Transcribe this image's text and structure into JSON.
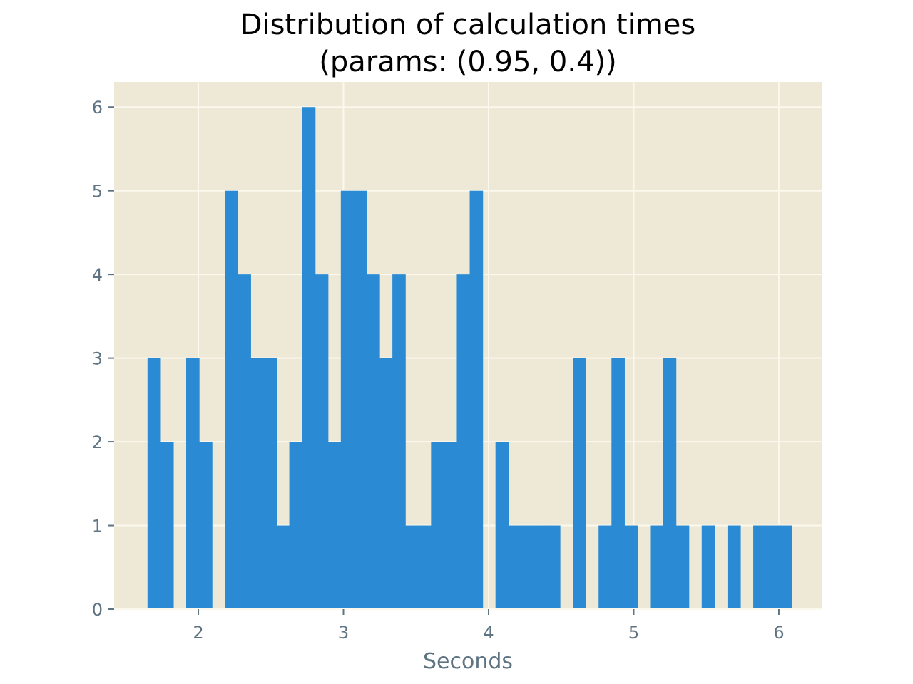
{
  "chart_data": {
    "type": "bar",
    "title": [
      "Distribution of calculation times",
      "(params: (0.95, 0.4))"
    ],
    "xlabel": "Seconds",
    "ylabel": "",
    "xlim": [
      1.42,
      6.3
    ],
    "ylim": [
      0,
      6.3
    ],
    "x_ticks": [
      2,
      3,
      4,
      5,
      6
    ],
    "y_ticks": [
      0,
      1,
      2,
      3,
      4,
      5,
      6
    ],
    "bin_start": 1.65,
    "bin_width": 0.0888,
    "counts": [
      3,
      2,
      0,
      3,
      2,
      0,
      5,
      4,
      3,
      3,
      1,
      2,
      6,
      4,
      2,
      5,
      5,
      4,
      3,
      4,
      1,
      1,
      2,
      2,
      4,
      5,
      0,
      2,
      1,
      1,
      1,
      1,
      0,
      3,
      0,
      1,
      3,
      1,
      0,
      1,
      3,
      1,
      0,
      1,
      0,
      1,
      0,
      1,
      1,
      1
    ],
    "grid": true,
    "colors": {
      "bar": "#2a8bd4",
      "plot_background": "#eee8d6",
      "grid": "#fbf8ee",
      "tick": "#5f7483"
    }
  }
}
